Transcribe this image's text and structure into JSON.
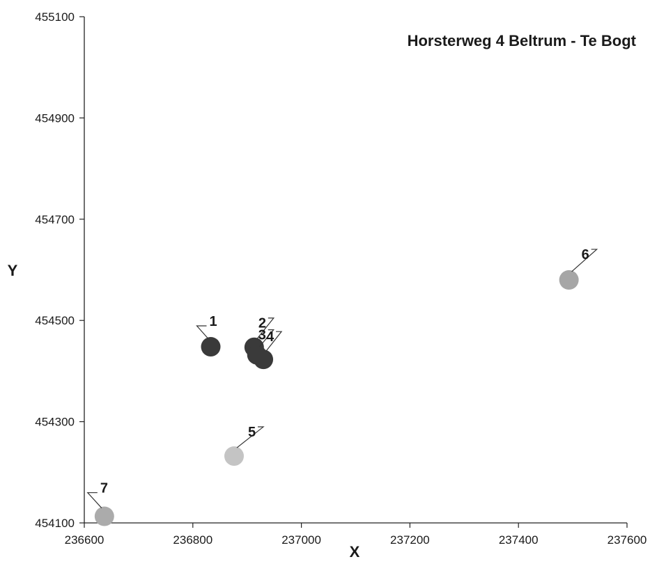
{
  "chart_data": {
    "type": "scatter",
    "title": "Horsterweg 4 Beltrum - Te Bogt",
    "xlabel": "X",
    "ylabel": "Y",
    "xlim": [
      236600,
      237600
    ],
    "ylim": [
      454100,
      455100
    ],
    "x_ticks": [
      236600,
      236800,
      237000,
      237200,
      237400,
      237600
    ],
    "y_ticks": [
      454100,
      454300,
      454500,
      454700,
      454900,
      455100
    ],
    "grid": false,
    "points": [
      {
        "label": "1",
        "x": 236833,
        "y": 454448,
        "color": "#3a3a3a"
      },
      {
        "label": "2",
        "x": 236913,
        "y": 454447,
        "color": "#3a3a3a"
      },
      {
        "label": "3",
        "x": 236918,
        "y": 454432,
        "color": "#3a3a3a"
      },
      {
        "label": "4",
        "x": 236930,
        "y": 454423,
        "color": "#3a3a3a"
      },
      {
        "label": "5",
        "x": 236876,
        "y": 454232,
        "color": "#c4c4c4"
      },
      {
        "label": "6",
        "x": 237493,
        "y": 454580,
        "color": "#a6a6a6"
      },
      {
        "label": "7",
        "x": 236637,
        "y": 454113,
        "color": "#ababab"
      }
    ]
  }
}
